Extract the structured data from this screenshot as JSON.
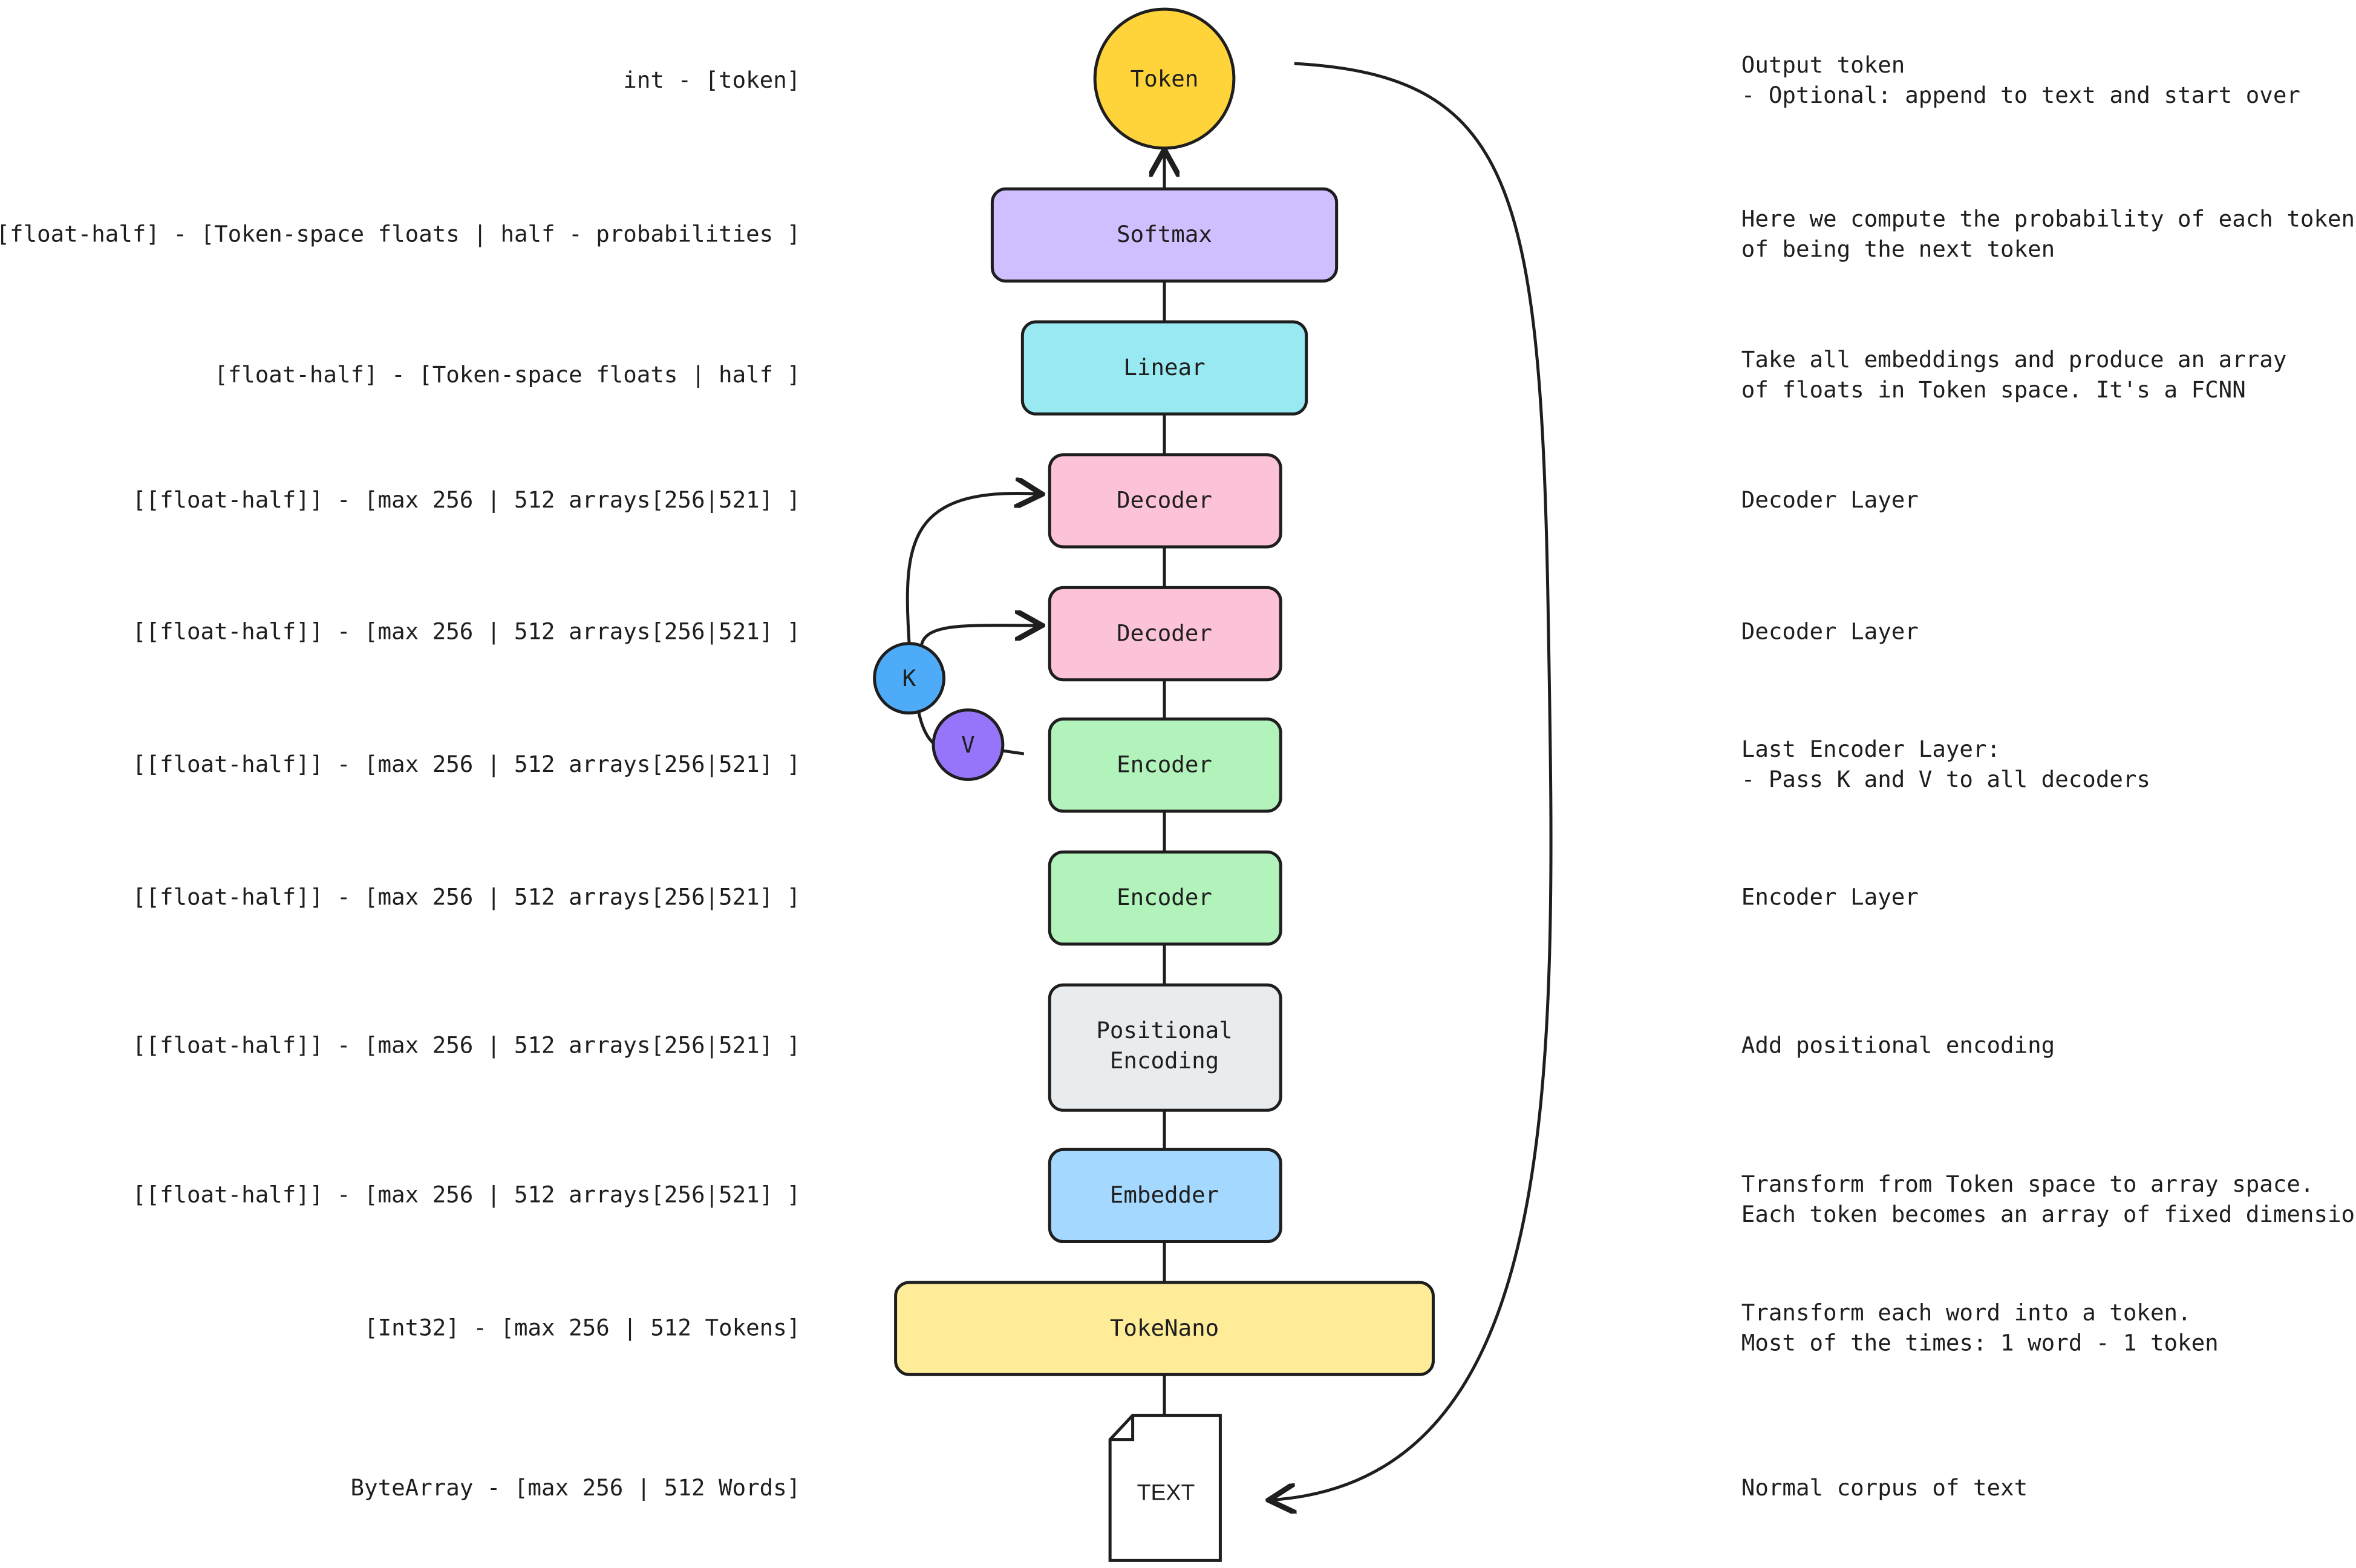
{
  "colors": {
    "token": "#ffd43b",
    "softmax": "#d0bfff",
    "linear": "#99e9f2",
    "decoder": "#fcc2d7",
    "encoder": "#b2f2bb",
    "positional": "#e9ecef",
    "embedder": "#a5d8ff",
    "tokenano": "#ffec99",
    "k": "#4dabf7",
    "v": "#9775fa"
  },
  "nodes": {
    "token": "Token",
    "softmax": "Softmax",
    "linear": "Linear",
    "decoder1": "Decoder",
    "decoder2": "Decoder",
    "encoder1": "Encoder",
    "encoder2": "Encoder",
    "positional_1": "Positional",
    "positional_2": "Encoding",
    "embedder": "Embedder",
    "tokenano": "TokeNano",
    "text": "TEXT",
    "k": "K",
    "v": "V"
  },
  "left_labels": [
    "int - [token]",
    "[float-half] - [Token-space floats | half - probabilities ]",
    "[float-half] - [Token-space floats | half ]",
    "[[float-half]] - [max 256 | 512 arrays[256|521] ]",
    "[[float-half]] - [max 256 | 512 arrays[256|521] ]",
    "[[float-half]] - [max 256 | 512 arrays[256|521] ]",
    "[[float-half]] - [max 256 | 512 arrays[256|521] ]",
    "[[float-half]] - [max 256 | 512 arrays[256|521] ]",
    "[[float-half]] - [max 256 | 512 arrays[256|521] ]",
    "[Int32] - [max 256 | 512 Tokens]",
    "ByteArray - [max 256 | 512 Words]"
  ],
  "right_labels": [
    [
      "Output token",
      "- Optional: append to text and start over"
    ],
    [
      "Here we compute the probability of each token",
      "of being the next token"
    ],
    [
      "Take all embeddings and produce an array",
      "of floats in Token space. It's a FCNN"
    ],
    [
      "Decoder Layer"
    ],
    [
      "Decoder Layer"
    ],
    [
      "Last Encoder Layer:",
      "- Pass K and V to all decoders"
    ],
    [
      "Encoder Layer"
    ],
    [
      "Add positional encoding"
    ],
    [
      "Transform from Token space to array space.",
      "Each token becomes an array of fixed dimension"
    ],
    [
      "Transform each word into a token.",
      "Most of the times: 1 word - 1 token"
    ],
    [
      "Normal corpus of text"
    ]
  ]
}
